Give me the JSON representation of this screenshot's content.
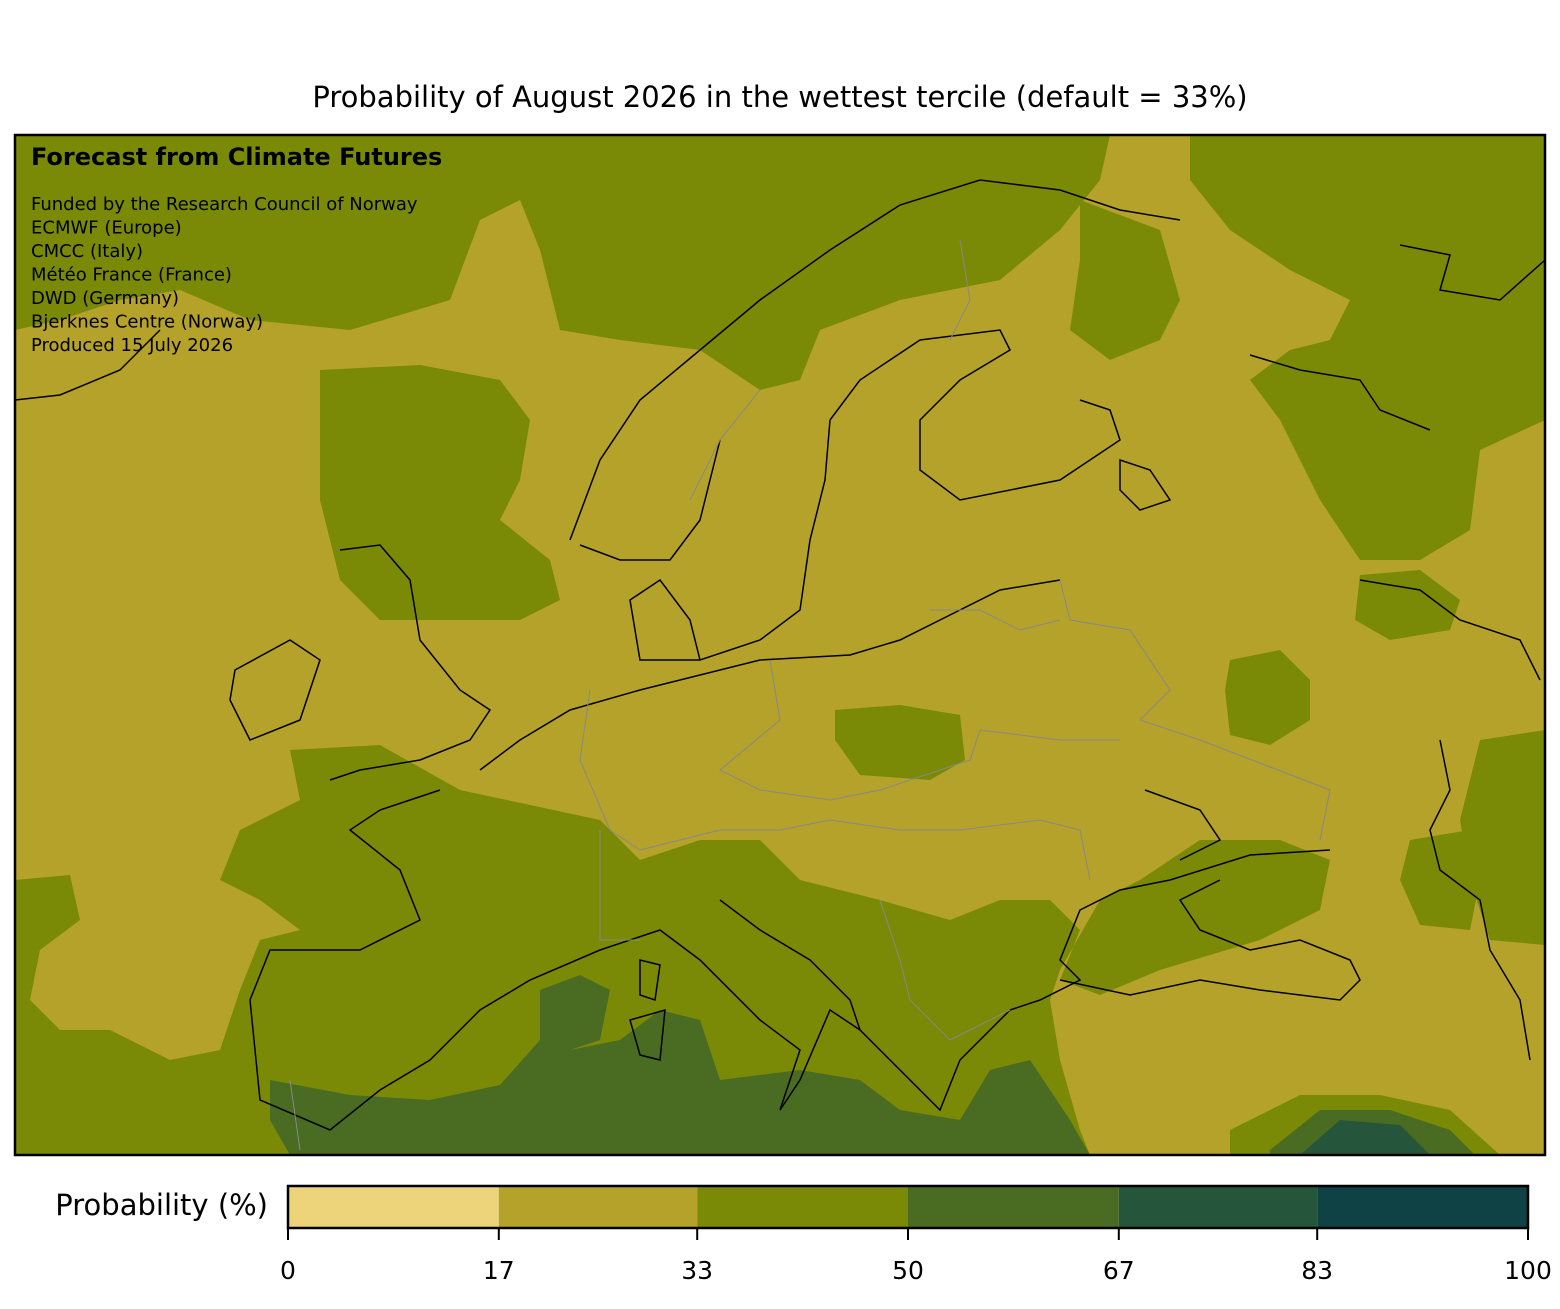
{
  "title": "Probability of August 2026 in the wettest tercile (default = 33%)",
  "map": {
    "heading": "Forecast from Climate Futures",
    "credits": [
      "Funded by the Research Council of Norway",
      "ECMWF (Europe)",
      "CMCC (Italy)",
      "Météo France (France)",
      "DWD (Germany)",
      "Bjerknes Centre (Norway)",
      "Produced 15 July 2026"
    ]
  },
  "colorbar": {
    "label": "Probability (%)",
    "ticks": [
      0,
      17,
      33,
      50,
      67,
      83,
      100
    ],
    "colors": [
      "#edd37a",
      "#b5a22a",
      "#7a8a06",
      "#4a6b22",
      "#25553a",
      "#0e4244"
    ]
  }
}
